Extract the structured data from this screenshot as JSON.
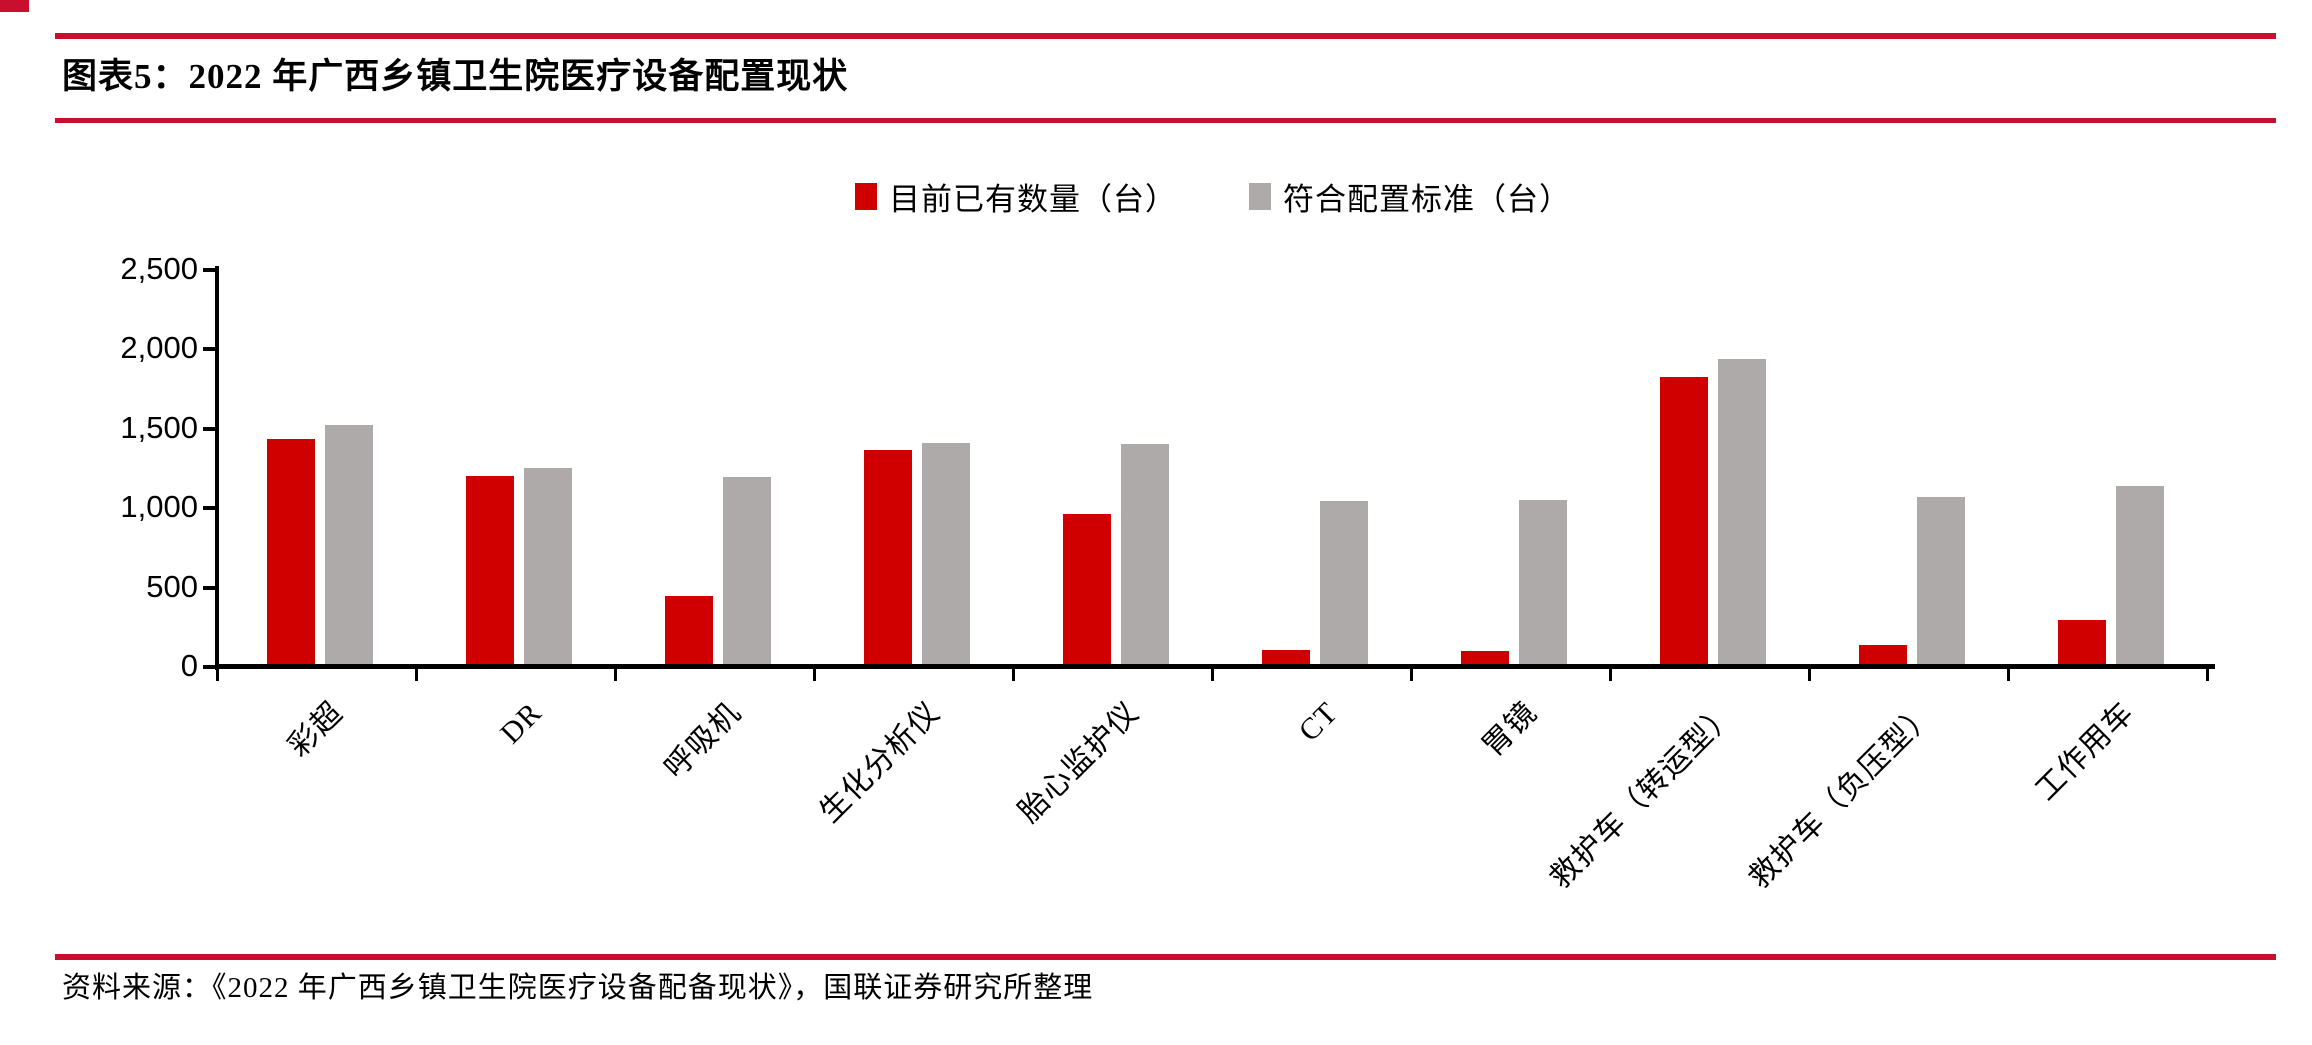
{
  "page": {
    "title": "图表5：2022 年广西乡镇卫生院医疗设备配置现状",
    "source": "资料来源：《2022 年广西乡镇卫生院医疗设备配备现状》，国联证券研究所整理"
  },
  "colors": {
    "rule_red": "#C8102E",
    "bar_red": "#D00000",
    "bar_gray": "#AEAAAA",
    "axis_black": "#000000"
  },
  "chart_data": {
    "type": "bar",
    "title": "2022年广西乡镇卫生院医疗设备配置现状",
    "categories": [
      "彩超",
      "DR",
      "呼吸机",
      "生化分析仪",
      "胎心监护仪",
      "CT",
      "胃镜",
      "救护车（转运型）",
      "救护车（负压型）",
      "工作用车"
    ],
    "series": [
      {
        "name": "目前已有数量（台）",
        "color": "#D00000",
        "values": [
          1440,
          1210,
          455,
          1370,
          970,
          115,
          105,
          1830,
          145,
          300
        ]
      },
      {
        "name": "符合配置标准（台）",
        "color": "#AEAAAA",
        "values": [
          1530,
          1260,
          1205,
          1420,
          1410,
          1050,
          1055,
          1945,
          1075,
          1145
        ]
      }
    ],
    "xlabel": "",
    "ylabel": "",
    "ylim": [
      0,
      2500
    ],
    "ytick_step": 500,
    "ytick_labels": [
      "0",
      "500",
      "1,000",
      "1,500",
      "2,000",
      "2,500"
    ],
    "grid": false,
    "legend_position": "top-center",
    "bar_label_rotation_deg": 45
  }
}
